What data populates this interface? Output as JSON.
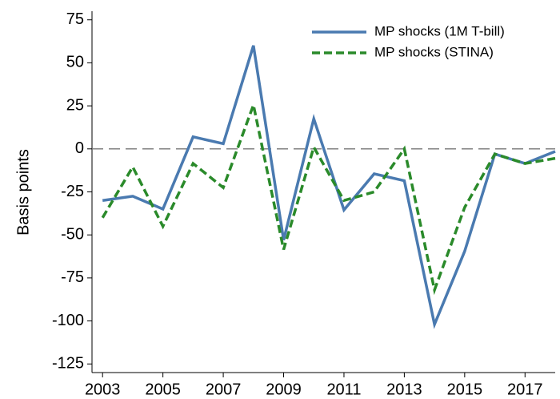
{
  "chart_data": {
    "type": "line",
    "y_label": "Basis points",
    "x": [
      2003,
      2004,
      2005,
      2006,
      2007,
      2008,
      2009,
      2010,
      2011,
      2012,
      2013,
      2014,
      2015,
      2016,
      2017,
      2018
    ],
    "series": [
      {
        "name": "MP shocks (1M T-bill)",
        "color": "#4a7ab0",
        "dash": "solid",
        "values": [
          -30,
          -27.5,
          -35,
          7,
          3,
          60,
          -53,
          17.5,
          -35.5,
          -14.5,
          -18.5,
          -102,
          -59.5,
          -3,
          -8.5,
          -1.5
        ]
      },
      {
        "name": "MP shocks (STINA)",
        "color": "#2a8a2a",
        "dash": "dashed",
        "values": [
          -40,
          -10.5,
          -45,
          -8.5,
          -22.5,
          25.5,
          -58.5,
          1,
          -30,
          -25,
          0,
          -82,
          -34,
          -3,
          -8.5,
          -5.5
        ]
      }
    ],
    "reference_line": 0,
    "xlim": [
      2002.65,
      2018
    ],
    "xticks": [
      2003,
      2005,
      2007,
      2009,
      2011,
      2013,
      2015,
      2017
    ],
    "ylim": [
      -130,
      80
    ],
    "yticks": [
      75,
      50,
      25,
      0,
      -25,
      -50,
      -75,
      -100,
      -125
    ],
    "grid": false,
    "legend": "top-right"
  }
}
